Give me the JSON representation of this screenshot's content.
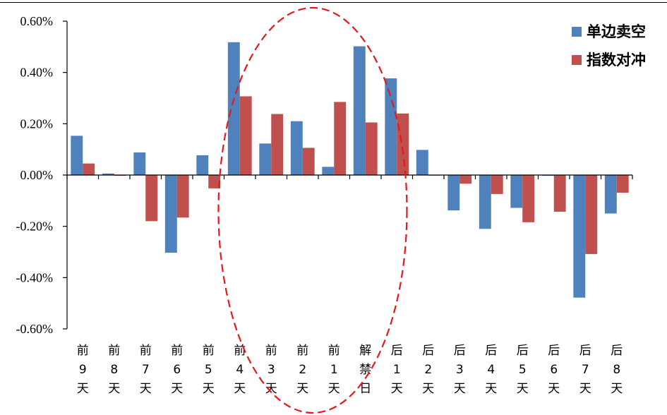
{
  "chart_data": {
    "type": "bar",
    "categories": [
      [
        "前",
        "9",
        "天"
      ],
      [
        "前",
        "8",
        "天"
      ],
      [
        "前",
        "7",
        "天"
      ],
      [
        "前",
        "6",
        "天"
      ],
      [
        "前",
        "5",
        "天"
      ],
      [
        "前",
        "4",
        "天"
      ],
      [
        "前",
        "3",
        "天"
      ],
      [
        "前",
        "2",
        "天"
      ],
      [
        "前",
        "1",
        "天"
      ],
      [
        "解",
        "禁",
        "日"
      ],
      [
        "后",
        "1",
        "天"
      ],
      [
        "后",
        "2",
        "天"
      ],
      [
        "后",
        "3",
        "天"
      ],
      [
        "后",
        "4",
        "天"
      ],
      [
        "后",
        "5",
        "天"
      ],
      [
        "后",
        "6",
        "天"
      ],
      [
        "后",
        "7",
        "天"
      ],
      [
        "后",
        "8",
        "天"
      ]
    ],
    "series": [
      {
        "name": "单边卖空",
        "color": "#4f81bd",
        "values": [
          0.00153,
          6e-05,
          0.00088,
          -0.00303,
          0.00077,
          0.00518,
          0.00123,
          0.0021,
          0.00032,
          0.00502,
          0.00377,
          0.00098,
          -0.00138,
          -0.0021,
          -0.00128,
          -3e-05,
          -0.00478,
          -0.0015
        ]
      },
      {
        "name": "指数对冲",
        "color": "#c0504d",
        "values": [
          0.00045,
          -3e-05,
          -0.0018,
          -0.00166,
          -0.00052,
          0.00307,
          0.00238,
          0.00106,
          0.00285,
          0.00205,
          0.0024,
          0.0,
          -0.00034,
          -0.00074,
          -0.00184,
          -0.00143,
          -0.00308,
          -0.00069
        ]
      }
    ],
    "ylim": [
      -0.006,
      0.006
    ],
    "yticks": [
      "-0.60%",
      "-0.40%",
      "-0.20%",
      "0.00%",
      "0.20%",
      "0.40%",
      "0.60%"
    ],
    "ytick_values": [
      -0.006,
      -0.004,
      -0.002,
      0,
      0.002,
      0.004,
      0.006
    ],
    "legend_position": "top-right",
    "grid": false,
    "highlight_ellipse": {
      "color": "#e31a1c",
      "from_category": 5,
      "to_category": 10
    }
  }
}
